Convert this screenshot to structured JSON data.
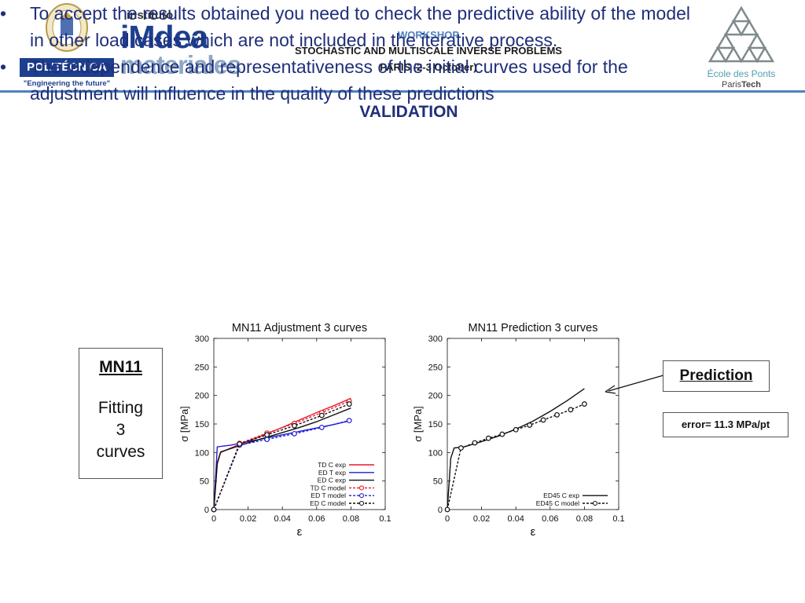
{
  "header": {
    "workshop_label": "WORKSHOP",
    "workshop_name": "STOCHASTIC AND MULTISCALE INVERSE PROBLEMS",
    "workshop_place": "PARIS (2-3 October)",
    "logo_left": {
      "brand": "POLITÉCNICA",
      "tagline": "\"Engineering the future\""
    },
    "logo_imdea": {
      "line1": "instituto",
      "line2_a": "iM",
      "line2_b": "dea",
      "line3": "materiales"
    },
    "logo_right": {
      "name": "École des Ponts",
      "sub_a": "Paris",
      "sub_b": "Tech"
    }
  },
  "slide": {
    "title": "VALIDATION",
    "bullets": [
      "To accept the results obtained you need to check the predictive ability of the model in other load cases which are not included in the iterative process.",
      "The independence and representativeness of the initial curves used for the adjustment will influence in the quality of these predictions"
    ],
    "bullet_char": "•"
  },
  "left_box": {
    "title": "MN11",
    "line1": "Fitting",
    "line2": "3",
    "line3": "curves"
  },
  "prediction_box": {
    "label": "Prediction"
  },
  "error_box": {
    "label": "error= 11.3 MPa/pt"
  },
  "colors": {
    "accent": "#4f81bd",
    "text": "#1f2f7a",
    "red": "#e8192c",
    "blue": "#1f1fd6",
    "black": "#111111"
  },
  "chart_data": [
    {
      "type": "line",
      "title": "MN11 Adjustment 3 curves",
      "xlabel": "ε",
      "ylabel": "σ [MPa]",
      "xlim": [
        0,
        0.1
      ],
      "ylim": [
        0,
        300
      ],
      "xticks": [
        "0",
        "0.02",
        "0.04",
        "0.06",
        "0.08",
        "0.1"
      ],
      "yticks": [
        "0",
        "50",
        "100",
        "150",
        "200",
        "250",
        "300"
      ],
      "legend_position": "bottom-right",
      "series": [
        {
          "name": "TD C exp",
          "color": "#e8192c",
          "style": "solid",
          "markers": false,
          "x": [
            0,
            0.002,
            0.004,
            0.01,
            0.02,
            0.03,
            0.04,
            0.05,
            0.06,
            0.07,
            0.08
          ],
          "y": [
            0,
            80,
            100,
            108,
            120,
            132,
            144,
            157,
            170,
            182,
            195
          ]
        },
        {
          "name": "ED T exp",
          "color": "#1f1fd6",
          "style": "solid",
          "markers": false,
          "x": [
            0,
            0.002,
            0.01,
            0.02,
            0.03,
            0.04,
            0.05,
            0.06,
            0.07,
            0.08
          ],
          "y": [
            0,
            110,
            113,
            119,
            125,
            131,
            137,
            143,
            149,
            156
          ]
        },
        {
          "name": "ED C exp",
          "color": "#111111",
          "style": "solid",
          "markers": false,
          "x": [
            0,
            0.002,
            0.004,
            0.01,
            0.02,
            0.03,
            0.04,
            0.05,
            0.06,
            0.07,
            0.08
          ],
          "y": [
            0,
            82,
            101,
            107,
            117,
            126,
            135,
            144,
            154,
            166,
            178
          ]
        },
        {
          "name": "TD C model",
          "color": "#e8192c",
          "style": "dashed",
          "markers": true,
          "x": [
            0,
            0.015,
            0.031,
            0.047,
            0.063,
            0.079
          ],
          "y": [
            0,
            116,
            134,
            151,
            170,
            190
          ]
        },
        {
          "name": "ED T model",
          "color": "#1f1fd6",
          "style": "dashed",
          "markers": true,
          "x": [
            0,
            0.015,
            0.031,
            0.047,
            0.063,
            0.079
          ],
          "y": [
            0,
            113,
            123,
            133,
            144,
            156
          ]
        },
        {
          "name": "ED C model",
          "color": "#111111",
          "style": "dashed",
          "markers": true,
          "x": [
            0,
            0.015,
            0.031,
            0.047,
            0.063,
            0.079
          ],
          "y": [
            0,
            115,
            131,
            147,
            165,
            185
          ]
        }
      ]
    },
    {
      "type": "line",
      "title": "MN11 Prediction 3 curves",
      "xlabel": "ε",
      "ylabel": "σ [MPa]",
      "xlim": [
        0,
        0.1
      ],
      "ylim": [
        0,
        300
      ],
      "xticks": [
        "0",
        "0.02",
        "0.04",
        "0.06",
        "0.08",
        "0.1"
      ],
      "yticks": [
        "0",
        "50",
        "100",
        "150",
        "200",
        "250",
        "300"
      ],
      "legend_position": "bottom-right",
      "series": [
        {
          "name": "ED45 C exp",
          "color": "#111111",
          "style": "solid",
          "markers": false,
          "x": [
            0,
            0.002,
            0.004,
            0.01,
            0.02,
            0.03,
            0.04,
            0.05,
            0.06,
            0.07,
            0.08
          ],
          "y": [
            0,
            90,
            108,
            110,
            119,
            129,
            141,
            155,
            172,
            191,
            212
          ]
        },
        {
          "name": "ED45 C model",
          "color": "#111111",
          "style": "dashed",
          "markers": true,
          "x": [
            0,
            0.008,
            0.016,
            0.024,
            0.032,
            0.04,
            0.048,
            0.056,
            0.064,
            0.072,
            0.08
          ],
          "y": [
            0,
            108,
            117,
            125,
            132,
            140,
            148,
            157,
            166,
            175,
            185
          ]
        }
      ]
    }
  ]
}
